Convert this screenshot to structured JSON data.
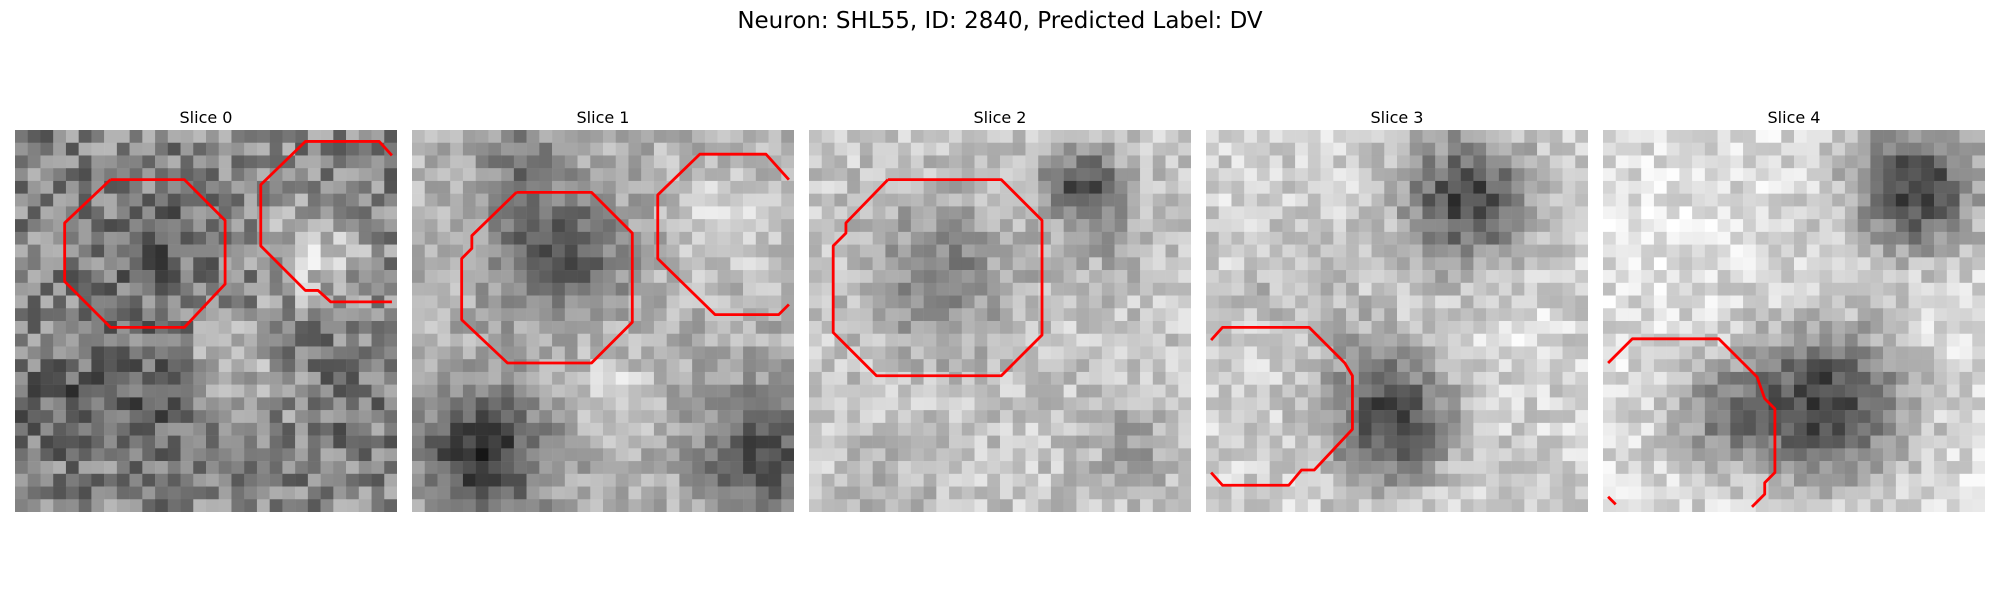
{
  "figure": {
    "title": "Neuron: SHL55, ID: 2840, Predicted Label: DV",
    "contour_color": "#ff0000"
  },
  "slices": [
    {
      "label": "Slice 0"
    },
    {
      "label": "Slice 1"
    },
    {
      "label": "Slice 2"
    },
    {
      "label": "Slice 3"
    },
    {
      "label": "Slice 4"
    }
  ]
}
